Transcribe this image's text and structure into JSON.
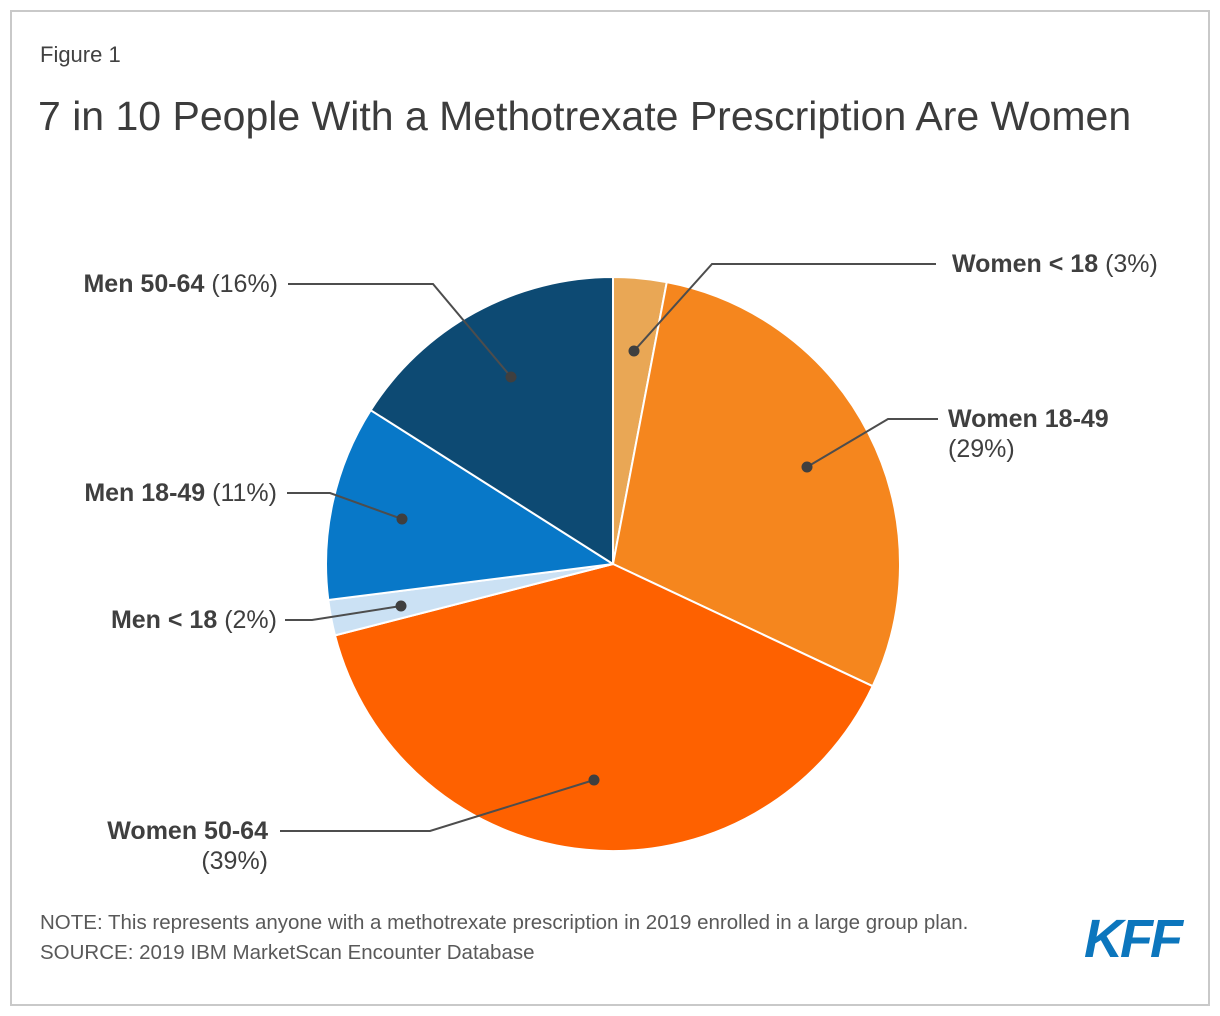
{
  "figure": {
    "label": "Figure 1",
    "title": "7 in 10 People With a Methotrexate Prescription Are Women"
  },
  "chart_data": {
    "type": "pie",
    "title": "7 in 10 People With a Methotrexate Prescription Are Women",
    "units": "percent",
    "start_angle": "12 o'clock",
    "direction": "clockwise",
    "slices": [
      {
        "label": "Women < 18",
        "value": 3,
        "color": "#E9A755"
      },
      {
        "label": "Women 18-49",
        "value": 29,
        "color": "#F5861E"
      },
      {
        "label": "Women 50-64",
        "value": 39,
        "color": "#FE6100"
      },
      {
        "label": "Men < 18",
        "value": 2,
        "color": "#CBE1F4"
      },
      {
        "label": "Men 18-49",
        "value": 11,
        "color": "#0878C8"
      },
      {
        "label": "Men 50-64",
        "value": 16,
        "color": "#0D4A73"
      }
    ],
    "label_format": "{label} ({value}%)",
    "slice_border_color": "#FFFFFF",
    "leader_line_color": "#4D4D4D",
    "label_text_color": "#3F3F3F",
    "legend": "none"
  },
  "footer": {
    "note": "NOTE: This represents anyone with a methotrexate prescription in 2019 enrolled in a large group plan.",
    "source": "SOURCE: 2019 IBM MarketScan Encounter Database",
    "logo_text": "KFF",
    "logo_color": "#0C76BD"
  }
}
